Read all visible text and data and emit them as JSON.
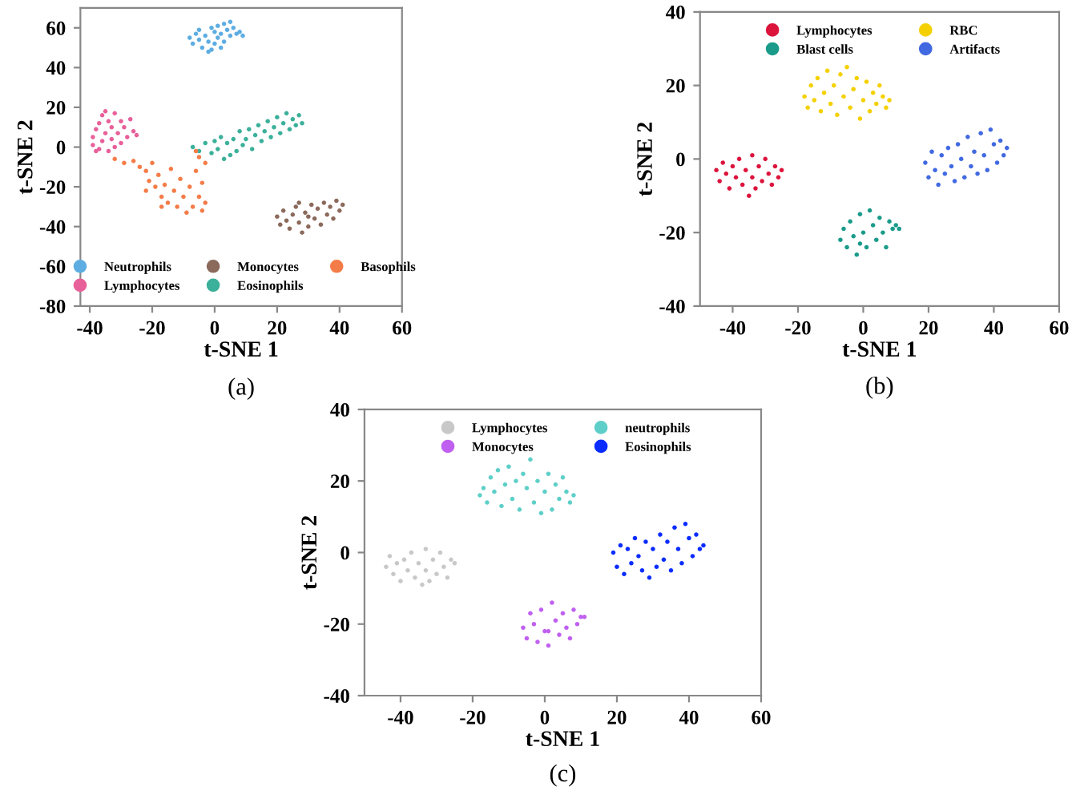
{
  "chart_data": [
    {
      "type": "scatter",
      "xlabel": "t-SNE 1",
      "ylabel": "t-SNE 2",
      "xlim": [
        -43,
        60
      ],
      "ylim": [
        -80,
        70
      ],
      "xticks": [
        -40,
        -20,
        0,
        20,
        40,
        60
      ],
      "yticks": [
        -80,
        -60,
        -40,
        -20,
        0,
        20,
        40,
        60
      ],
      "grid": false,
      "legend": "bottom",
      "marker": "circle",
      "annotations": [
        "(a)"
      ],
      "series": [
        {
          "name": "Neutrophils",
          "color": "#5dade2",
          "x": [
            -8,
            -7,
            -6,
            -5,
            -4,
            -3,
            -2,
            -1,
            0,
            0,
            1,
            1,
            2,
            2,
            3,
            3,
            4,
            5,
            5,
            6,
            7,
            8,
            9,
            -5,
            -1,
            -2
          ],
          "values": [
            55,
            52,
            57,
            54,
            50,
            56,
            53,
            49,
            58,
            52,
            55,
            61,
            50,
            57,
            62,
            53,
            59,
            56,
            63,
            60,
            57,
            58,
            56,
            59,
            60,
            48
          ]
        },
        {
          "name": "Lymphocytes",
          "color": "#e8609a",
          "x": [
            -39,
            -39,
            -38,
            -37,
            -37,
            -36,
            -36,
            -35,
            -34,
            -34,
            -33,
            -33,
            -32,
            -32,
            -31,
            -30,
            -30,
            -29,
            -28,
            -27,
            -26,
            -25,
            -35,
            -38
          ],
          "values": [
            1,
            5,
            9,
            -1,
            12,
            3,
            16,
            7,
            -2,
            13,
            10,
            4,
            17,
            0,
            7,
            13,
            2,
            10,
            5,
            14,
            8,
            6,
            18,
            -2
          ]
        },
        {
          "name": "Monocytes",
          "color": "#8b6a5c",
          "x": [
            20,
            21,
            22,
            23,
            24,
            25,
            26,
            27,
            28,
            29,
            30,
            31,
            32,
            33,
            34,
            35,
            36,
            37,
            38,
            39,
            40,
            41,
            27,
            30
          ],
          "values": [
            -35,
            -39,
            -32,
            -37,
            -41,
            -34,
            -30,
            -38,
            -43,
            -33,
            -40,
            -29,
            -36,
            -31,
            -39,
            -28,
            -34,
            -30,
            -36,
            -27,
            -32,
            -29,
            -28,
            -35
          ]
        },
        {
          "name": "Eosinophils",
          "color": "#3bb09a",
          "x": [
            -7,
            -5,
            -3,
            -1,
            0,
            1,
            2,
            3,
            4,
            5,
            6,
            7,
            8,
            9,
            10,
            11,
            12,
            13,
            14,
            15,
            16,
            17,
            18,
            19,
            20,
            21,
            22,
            23,
            24,
            25,
            26,
            27,
            28
          ],
          "values": [
            0,
            -2,
            2,
            -3,
            3,
            -1,
            5,
            -6,
            2,
            -4,
            4,
            -2,
            8,
            1,
            4,
            9,
            -1,
            6,
            11,
            3,
            8,
            13,
            5,
            10,
            15,
            7,
            12,
            17,
            9,
            14,
            11,
            16,
            12
          ]
        },
        {
          "name": "Basophils",
          "color": "#f47c48",
          "x": [
            -32,
            -29,
            -26,
            -24,
            -22,
            -21,
            -20,
            -19,
            -18,
            -17,
            -16,
            -15,
            -14,
            -13,
            -12,
            -11,
            -10,
            -9,
            -8,
            -7,
            -6,
            -5,
            -5,
            -4,
            -4,
            -3,
            -6,
            -3,
            -17,
            -22
          ],
          "values": [
            -6,
            -8,
            -7,
            -10,
            -12,
            -17,
            -8,
            -20,
            -14,
            -25,
            -19,
            -28,
            -11,
            -22,
            -30,
            -16,
            -25,
            -33,
            -20,
            -30,
            -12,
            -25,
            -5,
            -18,
            -32,
            -28,
            -2,
            -8,
            -30,
            -22
          ]
        }
      ]
    },
    {
      "type": "scatter",
      "xlabel": "t-SNE 1",
      "ylabel": "t-SNE 2",
      "xlim": [
        -50,
        60
      ],
      "ylim": [
        -40,
        40
      ],
      "xticks": [
        -40,
        -20,
        0,
        20,
        40,
        60
      ],
      "yticks": [
        -40,
        -20,
        0,
        20,
        40
      ],
      "grid": false,
      "legend": "top",
      "marker": "circle",
      "annotations": [
        "(b)"
      ],
      "series": [
        {
          "name": "Lymphocytes",
          "color": "#dc143c",
          "x": [
            -45,
            -44,
            -43,
            -42,
            -41,
            -40,
            -39,
            -38,
            -37,
            -36,
            -35,
            -34,
            -34,
            -33,
            -32,
            -31,
            -30,
            -29,
            -28,
            -27,
            -26,
            -25
          ],
          "values": [
            -3,
            -6,
            -1,
            -4,
            -8,
            -2,
            -5,
            0,
            -7,
            -3,
            -10,
            1,
            -5,
            -8,
            -2,
            -6,
            0,
            -4,
            -7,
            -2,
            -5,
            -3
          ]
        },
        {
          "name": "Blast cells",
          "color": "#1a9b8a",
          "x": [
            -7,
            -6,
            -5,
            -4,
            -3,
            -2,
            -1,
            0,
            1,
            2,
            3,
            4,
            5,
            6,
            7,
            8,
            9,
            10,
            11,
            -1
          ],
          "values": [
            -22,
            -19,
            -24,
            -17,
            -21,
            -26,
            -15,
            -20,
            -24,
            -14,
            -18,
            -22,
            -16,
            -20,
            -24,
            -17,
            -19,
            -18,
            -19,
            -23
          ]
        },
        {
          "name": "RBC",
          "color": "#f5d000",
          "x": [
            -18,
            -17,
            -16,
            -15,
            -14,
            -13,
            -12,
            -11,
            -10,
            -9,
            -8,
            -7,
            -6,
            -5,
            -4,
            -3,
            -2,
            -1,
            0,
            1,
            2,
            3,
            4,
            5,
            6,
            7,
            8
          ],
          "values": [
            17,
            14,
            20,
            16,
            22,
            13,
            18,
            24,
            15,
            20,
            12,
            23,
            17,
            25,
            14,
            19,
            22,
            11,
            16,
            21,
            13,
            18,
            15,
            20,
            17,
            14,
            16
          ]
        },
        {
          "name": "Artifacts",
          "color": "#4169e1",
          "x": [
            19,
            20,
            21,
            22,
            23,
            24,
            25,
            26,
            27,
            28,
            29,
            30,
            31,
            32,
            33,
            34,
            35,
            36,
            37,
            38,
            39,
            40,
            41,
            42,
            43,
            44
          ],
          "values": [
            -1,
            -5,
            2,
            -3,
            -7,
            1,
            -4,
            3,
            -2,
            -6,
            4,
            0,
            -5,
            6,
            -2,
            2,
            -4,
            7,
            1,
            -3,
            8,
            4,
            -1,
            5,
            1,
            3
          ]
        }
      ]
    },
    {
      "type": "scatter",
      "xlabel": "t-SNE 1",
      "ylabel": "t-SNE 2",
      "xlim": [
        -50,
        60
      ],
      "ylim": [
        -40,
        40
      ],
      "xticks": [
        -40,
        -20,
        0,
        20,
        40,
        60
      ],
      "yticks": [
        -40,
        -20,
        0,
        20,
        40
      ],
      "grid": false,
      "legend": "top",
      "marker": "circle",
      "annotations": [
        "(c)"
      ],
      "series": [
        {
          "name": "Lymphocytes",
          "color": "#c8c8c8",
          "x": [
            -44,
            -43,
            -42,
            -41,
            -40,
            -39,
            -38,
            -37,
            -36,
            -35,
            -34,
            -33,
            -33,
            -32,
            -31,
            -30,
            -29,
            -28,
            -27,
            -26,
            -25
          ],
          "values": [
            -4,
            -1,
            -6,
            -3,
            -8,
            -2,
            -5,
            0,
            -7,
            -3,
            -9,
            1,
            -5,
            -8,
            -2,
            -6,
            0,
            -4,
            -7,
            -2,
            -3
          ]
        },
        {
          "name": "Monocytes",
          "color": "#c060f0",
          "x": [
            -6,
            -5,
            -4,
            -3,
            -2,
            -1,
            0,
            1,
            2,
            3,
            4,
            5,
            6,
            7,
            8,
            9,
            10,
            11,
            1
          ],
          "values": [
            -21,
            -24,
            -17,
            -20,
            -25,
            -16,
            -22,
            -26,
            -14,
            -19,
            -23,
            -17,
            -21,
            -24,
            -16,
            -20,
            -18,
            -18,
            -22
          ]
        },
        {
          "name": "neutrophils",
          "color": "#5ecfc8",
          "x": [
            -18,
            -17,
            -16,
            -15,
            -14,
            -13,
            -12,
            -11,
            -10,
            -9,
            -8,
            -7,
            -6,
            -5,
            -4,
            -3,
            -2,
            -1,
            0,
            1,
            2,
            3,
            4,
            5,
            6,
            7,
            8
          ],
          "values": [
            16,
            18,
            14,
            21,
            17,
            23,
            13,
            19,
            24,
            15,
            20,
            12,
            22,
            18,
            26,
            14,
            20,
            11,
            17,
            22,
            12,
            19,
            15,
            21,
            17,
            14,
            16
          ]
        },
        {
          "name": "Eosinophils",
          "color": "#0a2cff",
          "x": [
            19,
            20,
            21,
            22,
            23,
            24,
            25,
            26,
            27,
            28,
            29,
            30,
            31,
            32,
            33,
            34,
            35,
            36,
            37,
            38,
            39,
            40,
            41,
            42,
            43,
            44
          ],
          "values": [
            0,
            -4,
            2,
            -6,
            1,
            -3,
            4,
            -1,
            -5,
            3,
            -7,
            1,
            -4,
            5,
            -2,
            3,
            -5,
            7,
            1,
            -3,
            8,
            4,
            -1,
            5,
            1,
            2
          ]
        }
      ]
    }
  ]
}
